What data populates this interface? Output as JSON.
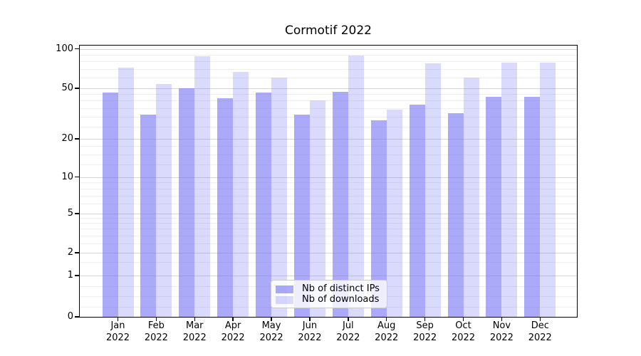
{
  "chart_data": {
    "type": "bar",
    "title": "Cormotif 2022",
    "categories": [
      "Jan",
      "Feb",
      "Mar",
      "Apr",
      "May",
      "Jun",
      "Jul",
      "Aug",
      "Sep",
      "Oct",
      "Nov",
      "Dec"
    ],
    "year_label": "2022",
    "series": [
      {
        "name": "Nb of distinct IPs",
        "color": "rgba(100,100,242,0.55)",
        "values": [
          46,
          31,
          50,
          42,
          46,
          31,
          47,
          28,
          37,
          32,
          43,
          43
        ]
      },
      {
        "name": "Nb of downloads",
        "color": "rgba(100,100,242,0.24)",
        "values": [
          72,
          54,
          88,
          67,
          60,
          40,
          89,
          34,
          77,
          60,
          78,
          78
        ]
      }
    ],
    "y_ticks": [
      "0",
      "1",
      "2",
      "5",
      "10",
      "20",
      "50",
      "100"
    ],
    "y_minor_gridlines": [
      0.25,
      0.5,
      0.75,
      1.5,
      2.5,
      3,
      3.5,
      4,
      4.5,
      6,
      7,
      8,
      9,
      12.5,
      15,
      17.5,
      25,
      30,
      35,
      40,
      45,
      60,
      70,
      80,
      90
    ],
    "y_scale": "asinh-log: linear from 0 to 1, logarithmic above 1",
    "ylim": [
      0,
      112
    ],
    "xlabel": "",
    "ylabel": "",
    "grid": "horizontal major and minor gridlines drawn beneath translucent bars",
    "legend_position": "lower-center"
  }
}
